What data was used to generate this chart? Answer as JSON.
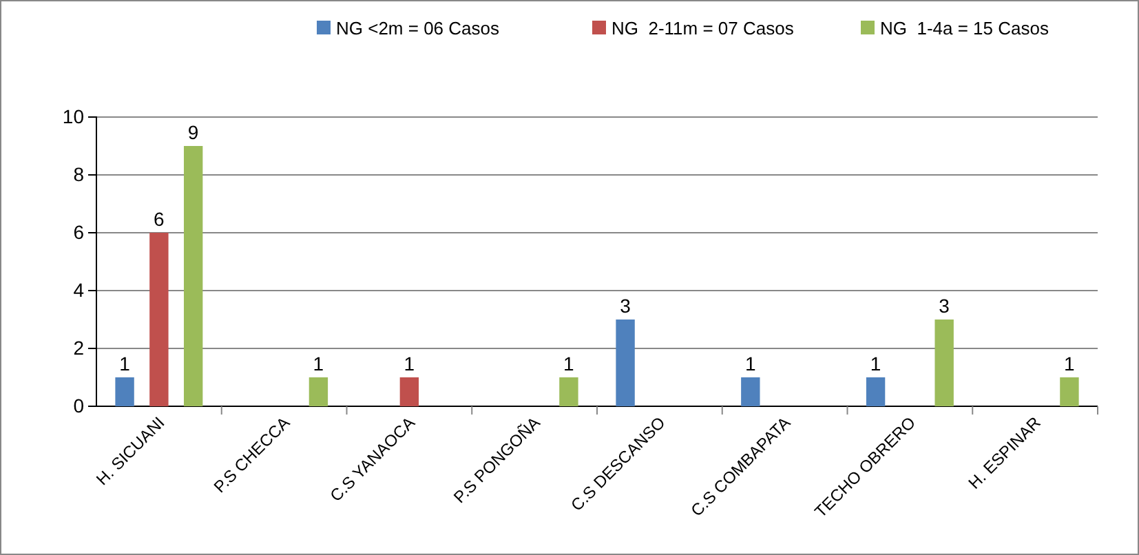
{
  "chart_data": {
    "type": "bar",
    "categories": [
      "H. SICUANI",
      "P.S CHECCA",
      "C.S YANAOCA",
      "P.S PONGOÑA",
      "C.S DESCANSO",
      "C.S COMBAPATA",
      "TECHO OBRERO",
      "H. ESPINAR"
    ],
    "series": [
      {
        "name": "NG <2m = 06 Casos",
        "color": "#4f81bd",
        "values": [
          1,
          null,
          null,
          null,
          3,
          1,
          1,
          null
        ]
      },
      {
        "name": "NG  2-11m = 07 Casos",
        "color": "#c0504d",
        "values": [
          6,
          null,
          1,
          null,
          null,
          null,
          null,
          null
        ]
      },
      {
        "name": "NG  1-4a = 15 Casos",
        "color": "#9bbb59",
        "values": [
          9,
          1,
          null,
          1,
          null,
          null,
          3,
          1
        ]
      }
    ],
    "ylim": [
      0,
      10
    ],
    "yticks": [
      0,
      2,
      4,
      6,
      8,
      10
    ],
    "grid": "y",
    "legend": "top",
    "data_labels": true
  }
}
